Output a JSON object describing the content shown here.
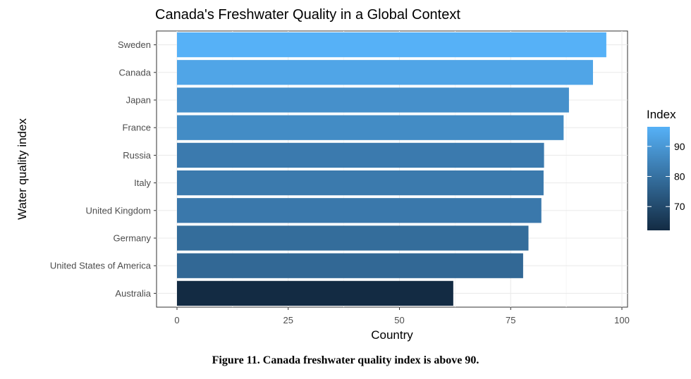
{
  "chart_data": {
    "type": "bar",
    "orientation": "horizontal",
    "title": "Canada's Freshwater Quality in a Global Context",
    "xlabel": "Country",
    "ylabel": "Water quality index",
    "categories": [
      "Sweden",
      "Canada",
      "Japan",
      "France",
      "Russia",
      "Italy",
      "United Kingdom",
      "Germany",
      "United States of America",
      "Australia"
    ],
    "values": [
      96.5,
      93.5,
      88.1,
      86.9,
      82.5,
      82.4,
      81.9,
      79.0,
      77.8,
      62.1
    ],
    "xlim": [
      0,
      100
    ],
    "xticks": [
      "0",
      "25",
      "50",
      "75",
      "100"
    ],
    "grid": true,
    "legend": {
      "title": "Index",
      "type": "colorbar",
      "placement": "right",
      "ticks": [
        "70",
        "80",
        "90"
      ],
      "tick_values": [
        70,
        80,
        90
      ],
      "range": [
        62.1,
        96.5
      ],
      "color_low": "#132b43",
      "color_high": "#56b1f7"
    }
  },
  "caption": "Figure 11. Canada freshwater quality index is above 90."
}
